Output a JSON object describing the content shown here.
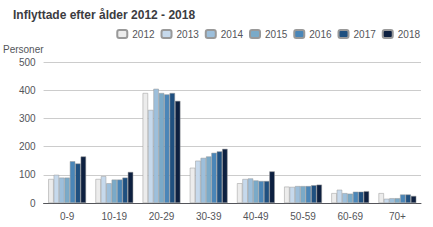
{
  "chart_data": {
    "type": "bar",
    "title": "Inflyttade efter ålder 2012 - 2018",
    "ylabel": "Personer",
    "categories": [
      "0-9",
      "10-19",
      "20-29",
      "30-39",
      "40-49",
      "50-59",
      "60-69",
      "70+"
    ],
    "series": [
      {
        "name": "2012",
        "color": "#ececec",
        "values": [
          85,
          85,
          390,
          125,
          70,
          58,
          35,
          35
        ]
      },
      {
        "name": "2013",
        "color": "#c6d9ec",
        "values": [
          100,
          95,
          330,
          150,
          85,
          57,
          47,
          15
        ]
      },
      {
        "name": "2014",
        "color": "#9dbfdb",
        "values": [
          90,
          70,
          405,
          160,
          87,
          60,
          35,
          17
        ]
      },
      {
        "name": "2015",
        "color": "#7aaac8",
        "values": [
          90,
          83,
          390,
          165,
          80,
          60,
          33,
          17
        ]
      },
      {
        "name": "2016",
        "color": "#4a86b8",
        "values": [
          148,
          83,
          385,
          178,
          78,
          60,
          40,
          30
        ]
      },
      {
        "name": "2017",
        "color": "#1f5080",
        "values": [
          140,
          90,
          390,
          183,
          78,
          63,
          40,
          30
        ]
      },
      {
        "name": "2018",
        "color": "#0d2040",
        "values": [
          165,
          110,
          362,
          192,
          112,
          65,
          42,
          25
        ]
      }
    ],
    "ylim": [
      0,
      500
    ],
    "yticks": [
      0,
      100,
      200,
      300,
      400,
      500
    ],
    "grid": true,
    "legend": "upper right"
  }
}
